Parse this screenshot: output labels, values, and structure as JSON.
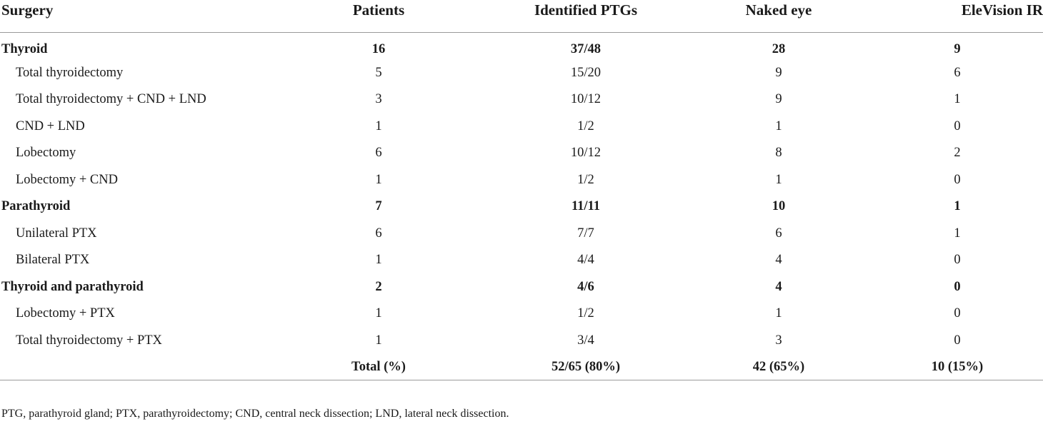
{
  "table": {
    "headers": [
      "Surgery",
      "Patients",
      "Identified PTGs",
      "Naked eye",
      "EleVision IR"
    ],
    "rows": [
      {
        "type": "group",
        "cells": [
          "Thyroid",
          "16",
          "37/48",
          "28",
          "9"
        ]
      },
      {
        "type": "sub",
        "cells": [
          "Total thyroidectomy",
          "5",
          "15/20",
          "9",
          "6"
        ]
      },
      {
        "type": "sub",
        "cells": [
          "Total thyroidectomy + CND + LND",
          "3",
          "10/12",
          "9",
          "1"
        ]
      },
      {
        "type": "sub",
        "cells": [
          "CND + LND",
          "1",
          "1/2",
          "1",
          "0"
        ]
      },
      {
        "type": "sub",
        "cells": [
          "Lobectomy",
          "6",
          "10/12",
          "8",
          "2"
        ]
      },
      {
        "type": "sub",
        "cells": [
          "Lobectomy + CND",
          "1",
          "1/2",
          "1",
          "0"
        ]
      },
      {
        "type": "group",
        "cells": [
          "Parathyroid",
          "7",
          "11/11",
          "10",
          "1"
        ]
      },
      {
        "type": "sub",
        "cells": [
          "Unilateral PTX",
          "6",
          "7/7",
          "6",
          "1"
        ]
      },
      {
        "type": "sub",
        "cells": [
          "Bilateral PTX",
          "1",
          "4/4",
          "4",
          "0"
        ]
      },
      {
        "type": "group",
        "cells": [
          "Thyroid and parathyroid",
          "2",
          "4/6",
          "4",
          "0"
        ]
      },
      {
        "type": "sub",
        "cells": [
          "Lobectomy + PTX",
          "1",
          "1/2",
          "1",
          "0"
        ]
      },
      {
        "type": "sub",
        "cells": [
          "Total thyroidectomy + PTX",
          "1",
          "3/4",
          "3",
          "0"
        ]
      },
      {
        "type": "total",
        "cells": [
          "",
          "Total (%)",
          "52/65 (80%)",
          "42 (65%)",
          "10 (15%)"
        ]
      }
    ]
  },
  "footnote": "PTG, parathyroid gland; PTX, parathyroidectomy; CND, central neck dissection; LND, lateral neck dissection."
}
